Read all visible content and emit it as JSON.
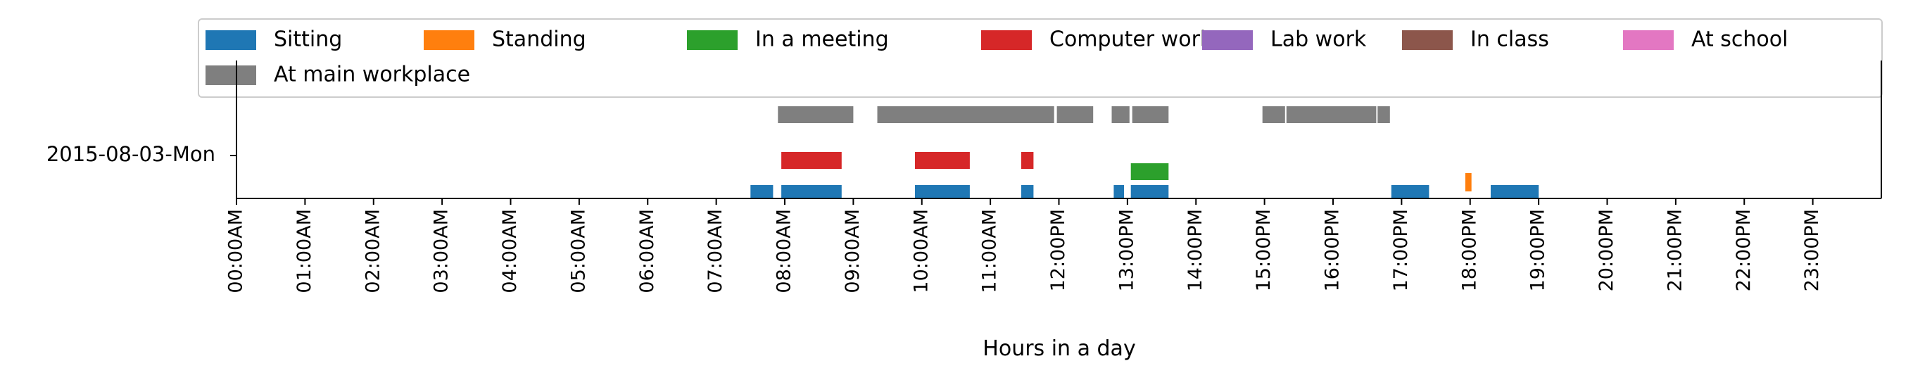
{
  "chart_data": {
    "type": "timeline",
    "title": "",
    "xlabel": "Hours in a day",
    "ylabel": "",
    "xlim": [
      0,
      24
    ],
    "grid": false,
    "legend_placement": "top",
    "y_category": "2015-08-03-Mon",
    "x_ticks": [
      "00:00AM",
      "01:00AM",
      "02:00AM",
      "03:00AM",
      "04:00AM",
      "05:00AM",
      "06:00AM",
      "07:00AM",
      "08:00AM",
      "09:00AM",
      "10:00AM",
      "11:00AM",
      "12:00PM",
      "13:00PM",
      "14:00PM",
      "15:00PM",
      "16:00PM",
      "17:00PM",
      "18:00PM",
      "19:00PM",
      "20:00PM",
      "21:00PM",
      "22:00PM",
      "23:00PM"
    ],
    "series": [
      {
        "name": "Sitting",
        "color": "#1f77b4",
        "intervals": [
          [
            7.5,
            7.83
          ],
          [
            7.95,
            8.83
          ],
          [
            9.9,
            10.7
          ],
          [
            11.45,
            11.63
          ],
          [
            12.8,
            12.95
          ],
          [
            13.05,
            13.6
          ],
          [
            16.85,
            17.4
          ],
          [
            18.3,
            19.0
          ]
        ]
      },
      {
        "name": "Standing",
        "color": "#ff7f0e",
        "intervals": [
          [
            17.93,
            18.02
          ]
        ]
      },
      {
        "name": "In a meeting",
        "color": "#2ca02c",
        "intervals": [
          [
            13.05,
            13.6
          ]
        ]
      },
      {
        "name": "Computer work",
        "color": "#d62728",
        "intervals": [
          [
            7.95,
            8.83
          ],
          [
            9.9,
            10.7
          ],
          [
            11.45,
            11.63
          ]
        ]
      },
      {
        "name": "Lab work",
        "color": "#9467bd",
        "intervals": []
      },
      {
        "name": "In class",
        "color": "#8c564b",
        "intervals": []
      },
      {
        "name": "At school",
        "color": "#e377c2",
        "intervals": []
      },
      {
        "name": "At main workplace",
        "color": "#7f7f7f",
        "intervals": [
          [
            7.9,
            9.0
          ],
          [
            9.35,
            11.93
          ],
          [
            11.97,
            12.5
          ],
          [
            12.77,
            13.03
          ],
          [
            13.07,
            13.6
          ],
          [
            14.97,
            15.3
          ],
          [
            15.32,
            16.63
          ],
          [
            16.65,
            16.83
          ]
        ]
      }
    ]
  }
}
